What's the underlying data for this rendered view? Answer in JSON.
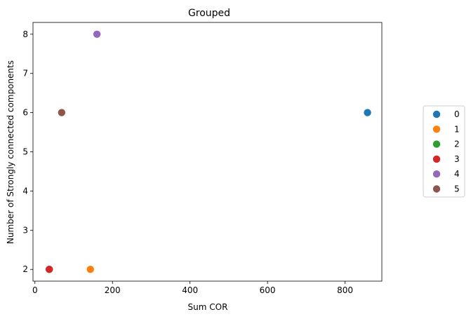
{
  "chart_data": {
    "type": "scatter",
    "title": "Grouped",
    "xlabel": "Sum COR",
    "ylabel": "Number of Strongly connected components",
    "xlim": [
      -5,
      895
    ],
    "ylim": [
      1.7,
      8.3
    ],
    "xticks": [
      0,
      200,
      400,
      600,
      800
    ],
    "yticks": [
      2,
      3,
      4,
      5,
      6,
      7,
      8
    ],
    "grid": false,
    "legend_position": "right",
    "series": [
      {
        "name": "0",
        "color": "#1f77b4",
        "points": [
          {
            "x": 858,
            "y": 6
          }
        ]
      },
      {
        "name": "1",
        "color": "#ff7f0e",
        "points": [
          {
            "x": 143,
            "y": 2
          }
        ]
      },
      {
        "name": "2",
        "color": "#2ca02c",
        "points": [
          {
            "x": 37,
            "y": 2
          }
        ]
      },
      {
        "name": "3",
        "color": "#d62728",
        "points": [
          {
            "x": 37,
            "y": 2
          }
        ]
      },
      {
        "name": "4",
        "color": "#9467bd",
        "points": [
          {
            "x": 160,
            "y": 8
          }
        ]
      },
      {
        "name": "5",
        "color": "#8c564b",
        "points": [
          {
            "x": 69,
            "y": 6
          }
        ]
      }
    ]
  }
}
